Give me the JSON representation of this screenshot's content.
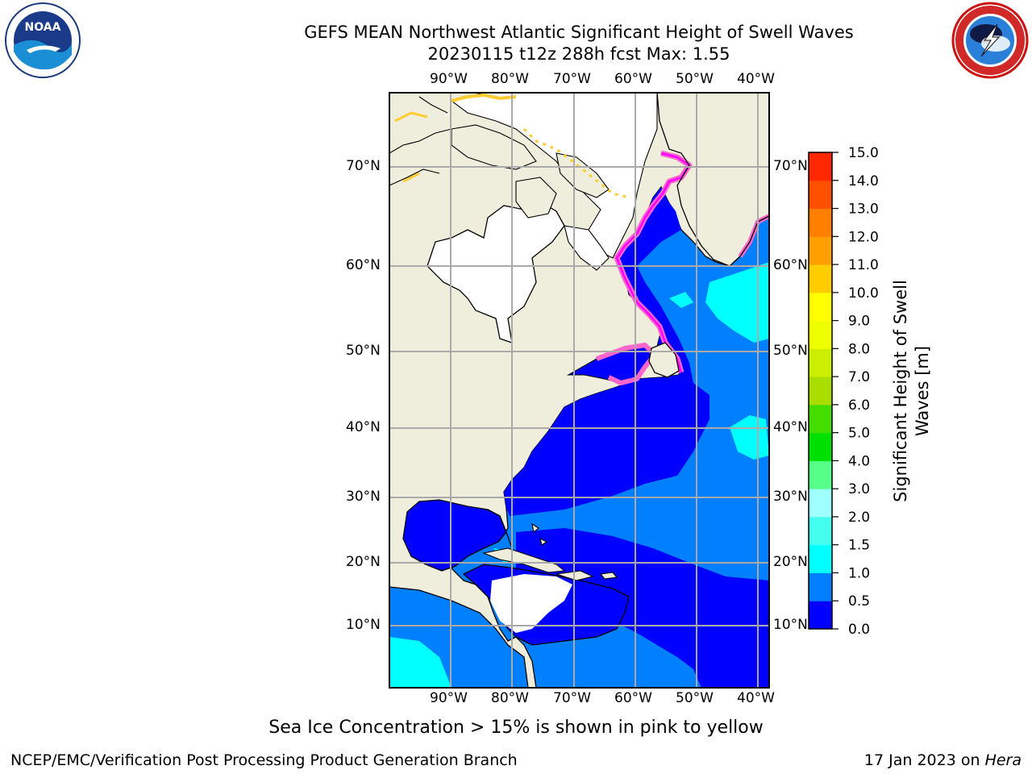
{
  "header": {
    "title_line1": "GEFS MEAN Northwest Atlantic Significant Height of Swell Waves",
    "title_line2": "20230115 t12z 288h fcst   Max: 1.55",
    "left_logo": "noaa-logo",
    "right_logo": "national-weather-service-logo"
  },
  "map": {
    "lon_ticks": [
      "90°W",
      "80°W",
      "70°W",
      "60°W",
      "50°W",
      "40°W"
    ],
    "lat_ticks": [
      "70°N",
      "60°N",
      "50°N",
      "40°N",
      "30°N",
      "20°N",
      "10°N"
    ],
    "land_color": "#efeedd",
    "ocean_low_color": "#0000ff",
    "ocean_mid_color": "#0080ff",
    "ocean_high_color": "#00ffff",
    "ice_colors": [
      "#ff66cc",
      "#ff00ff",
      "#ffcc33",
      "#ffee44"
    ]
  },
  "colorbar": {
    "label": "Significant Height of Swell Waves [m]",
    "ticks": [
      "0.0",
      "0.5",
      "1.0",
      "1.5",
      "2.0",
      "3.0",
      "4.0",
      "5.0",
      "6.0",
      "7.0",
      "8.0",
      "9.0",
      "10.0",
      "11.0",
      "12.0",
      "13.0",
      "14.0",
      "15.0"
    ],
    "colors": [
      "#0000ff",
      "#0080ff",
      "#00ffff",
      "#44ffee",
      "#a0ffff",
      "#55ff88",
      "#00e000",
      "#44dd00",
      "#aadd00",
      "#ccee00",
      "#eeff00",
      "#ffff00",
      "#ffcc00",
      "#ffa000",
      "#ff8000",
      "#ff5000",
      "#ff2800"
    ]
  },
  "footer": {
    "note": "Sea Ice Concentration > 15% is shown in pink to yellow",
    "org": "NCEP/EMC/Verification Post Processing Product Generation Branch",
    "date": "17 Jan 2023 on ",
    "host": "Hera"
  }
}
